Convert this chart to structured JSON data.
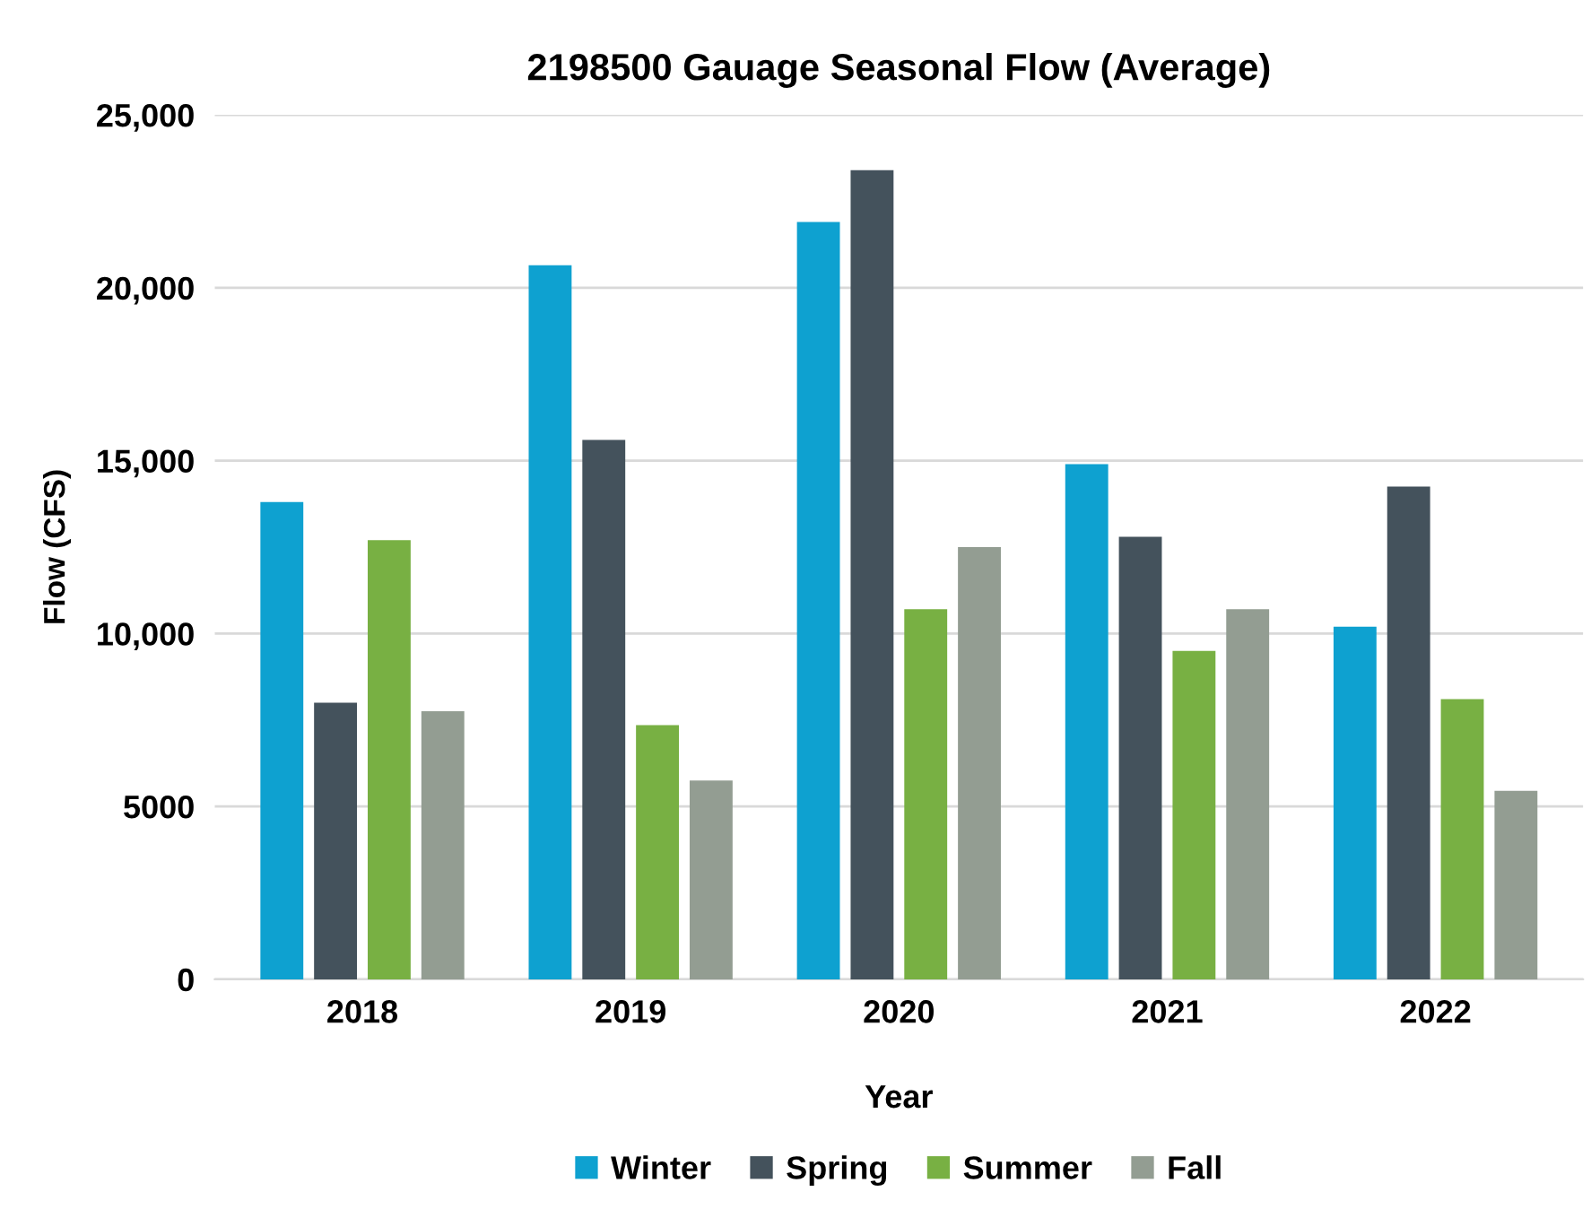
{
  "chart_data": {
    "type": "bar",
    "title": "2198500 Gauage Seasonal Flow (Average)",
    "xlabel": "Year",
    "ylabel": "Flow (CFS)",
    "categories": [
      "2018",
      "2019",
      "2020",
      "2021",
      "2022"
    ],
    "series": [
      {
        "name": "Winter",
        "color": "#0ea1d0",
        "values": [
          13800,
          20650,
          21900,
          14900,
          10200
        ]
      },
      {
        "name": "Spring",
        "color": "#44525c",
        "values": [
          8000,
          15600,
          23400,
          12800,
          14250
        ]
      },
      {
        "name": "Summer",
        "color": "#78b043",
        "values": [
          12700,
          7350,
          10700,
          9500,
          8100
        ]
      },
      {
        "name": "Fall",
        "color": "#939d92",
        "values": [
          7750,
          5750,
          12500,
          10700,
          5450
        ]
      }
    ],
    "ylim": [
      0,
      25000
    ],
    "yticks": [
      0,
      {
        "value": 5000,
        "label": "5000"
      },
      {
        "value": 10000,
        "label": "10,000"
      },
      {
        "value": 15000,
        "label": "15,000"
      },
      {
        "value": 20000,
        "label": "20,000"
      },
      {
        "value": 25000,
        "label": "25,000"
      }
    ],
    "grid": "y",
    "legend": "bottom"
  }
}
